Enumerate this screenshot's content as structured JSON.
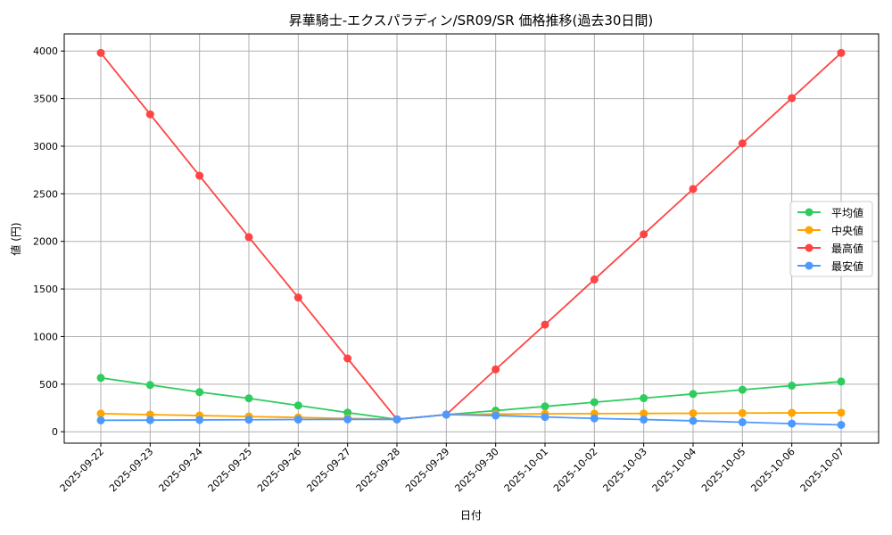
{
  "chart_data": {
    "type": "line",
    "title": "昇華騎士-エクスパラディン/SR09/SR 価格推移(過去30日間)",
    "xlabel": "日付",
    "ylabel": "値 (円)",
    "ylim": [
      -120,
      4180
    ],
    "yticks": [
      0,
      500,
      1000,
      1500,
      2000,
      2500,
      3000,
      3500,
      4000
    ],
    "grid": true,
    "legend_position": "center-right",
    "categories": [
      "2025-09-22",
      "2025-09-23",
      "2025-09-24",
      "2025-09-25",
      "2025-09-26",
      "2025-09-27",
      "2025-09-28",
      "2025-09-29",
      "2025-09-30",
      "2025-10-01",
      "2025-10-02",
      "2025-10-03",
      "2025-10-04",
      "2025-10-05",
      "2025-10-06",
      "2025-10-07"
    ],
    "series": [
      {
        "name": "平均値",
        "color": "#2ecc5f",
        "values": [
          566,
          491,
          416,
          351,
          276,
          201,
          130,
          180,
          222,
          266,
          310,
          353,
          397,
          441,
          484,
          527
        ]
      },
      {
        "name": "中央値",
        "color": "#ffa500",
        "values": [
          190,
          180,
          170,
          160,
          150,
          140,
          130,
          180,
          185,
          188,
          190,
          192,
          194,
          196,
          198,
          200
        ]
      },
      {
        "name": "最高値",
        "color": "#ff4444",
        "values": [
          3980,
          3335,
          2690,
          2045,
          1410,
          770,
          130,
          180,
          655,
          1125,
          1600,
          2075,
          2550,
          3030,
          3505,
          3980
        ]
      },
      {
        "name": "最安値",
        "color": "#4d9aff",
        "values": [
          120,
          122,
          124,
          126,
          128,
          130,
          130,
          180,
          170,
          155,
          140,
          128,
          115,
          100,
          85,
          72
        ]
      }
    ]
  }
}
